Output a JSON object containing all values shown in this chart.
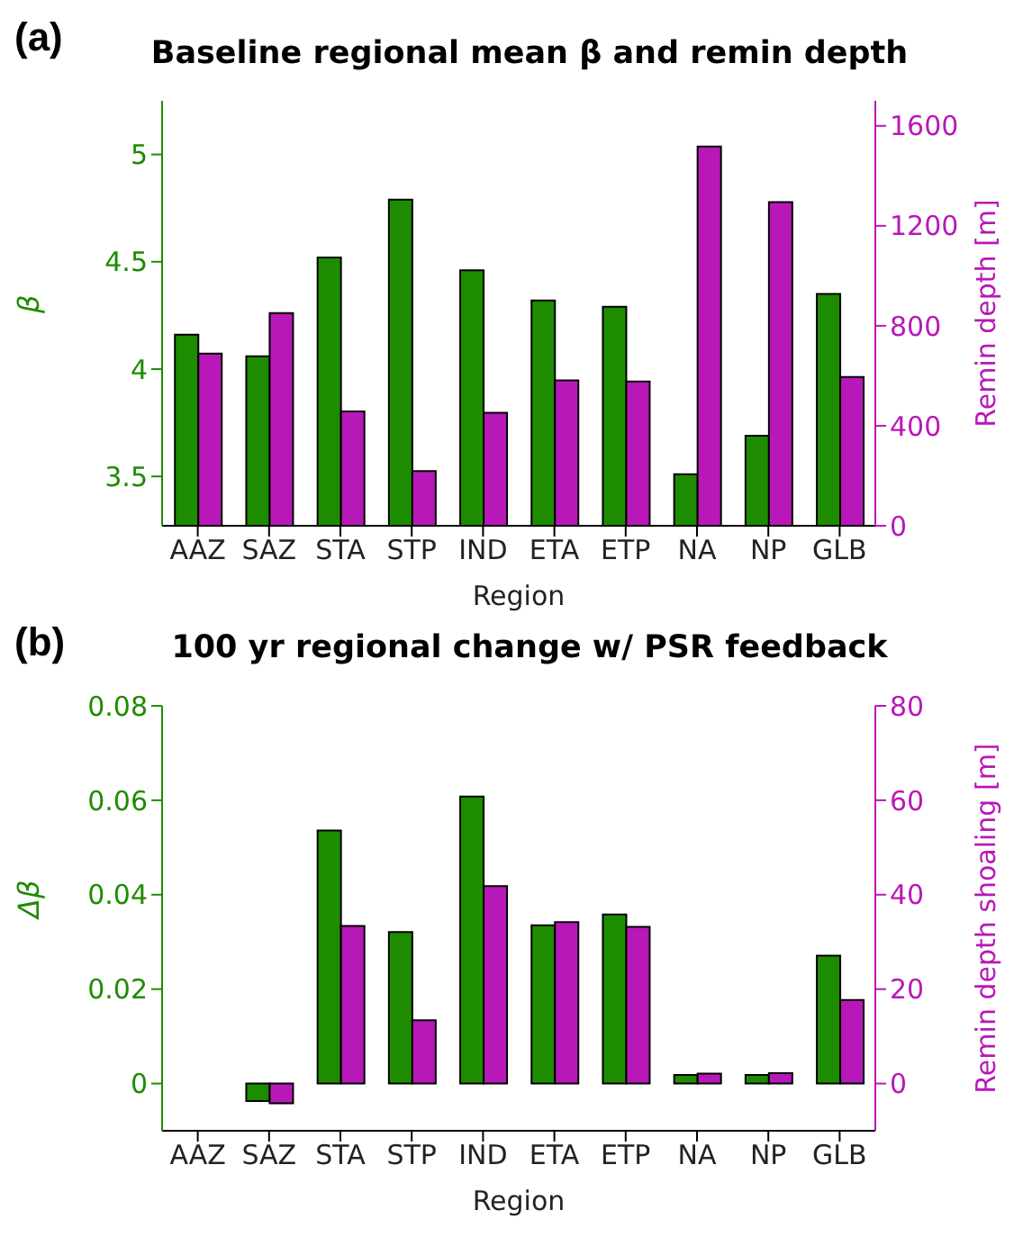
{
  "chart_data": [
    {
      "type": "bar",
      "title": "Baseline regional mean β and remin depth",
      "annotations": [
        "(a)"
      ],
      "xlabel": "Region",
      "ylabel": "β",
      "y2label": "Remin depth [m]",
      "categories": [
        "AAZ",
        "SAZ",
        "STA",
        "STP",
        "IND",
        "ETA",
        "ETP",
        "NA",
        "NP",
        "GLB"
      ],
      "series": [
        {
          "color": "#1e8c00",
          "values": [
            4.16,
            4.06,
            4.52,
            4.79,
            4.46,
            4.32,
            4.29,
            3.51,
            3.69,
            4.35
          ]
        },
        {
          "color": "#b818b8",
          "axis": "y2",
          "values": [
            689,
            851,
            457,
            219,
            452,
            582,
            577,
            1517,
            1295,
            595
          ]
        }
      ],
      "ylim": [
        3.27,
        5.25
      ],
      "yticks": [
        3.5,
        4,
        4.5,
        5
      ],
      "y2lim": [
        0,
        1700
      ],
      "y2ticks": [
        0,
        400,
        800,
        1200,
        1600
      ],
      "grid": false,
      "legend": false
    },
    {
      "type": "bar",
      "title": "100 yr regional change w/ PSR feedback",
      "annotations": [
        "(b)"
      ],
      "xlabel": "Region",
      "ylabel": "Δβ",
      "y2label": "Remin depth shoaling [m]",
      "categories": [
        "AAZ",
        "SAZ",
        "STA",
        "STP",
        "IND",
        "ETA",
        "ETP",
        "NA",
        "NP",
        "GLB"
      ],
      "series": [
        {
          "color": "#1e8c00",
          "values": [
            0,
            -0.0037,
            0.0536,
            0.0321,
            0.0608,
            0.0335,
            0.0358,
            0.0018,
            0.0018,
            0.0271
          ]
        },
        {
          "color": "#b818b8",
          "axis": "y2",
          "values": [
            0,
            -4.2,
            33.4,
            13.4,
            41.8,
            34.2,
            33.2,
            2.1,
            2.2,
            17.7
          ]
        }
      ],
      "ylim": [
        -0.01,
        0.08
      ],
      "yticks": [
        0,
        0.02,
        0.04,
        0.06,
        0.08
      ],
      "y2lim": [
        -10,
        80
      ],
      "y2ticks": [
        0,
        20,
        40,
        60,
        80
      ],
      "grid": false,
      "legend": false
    }
  ]
}
